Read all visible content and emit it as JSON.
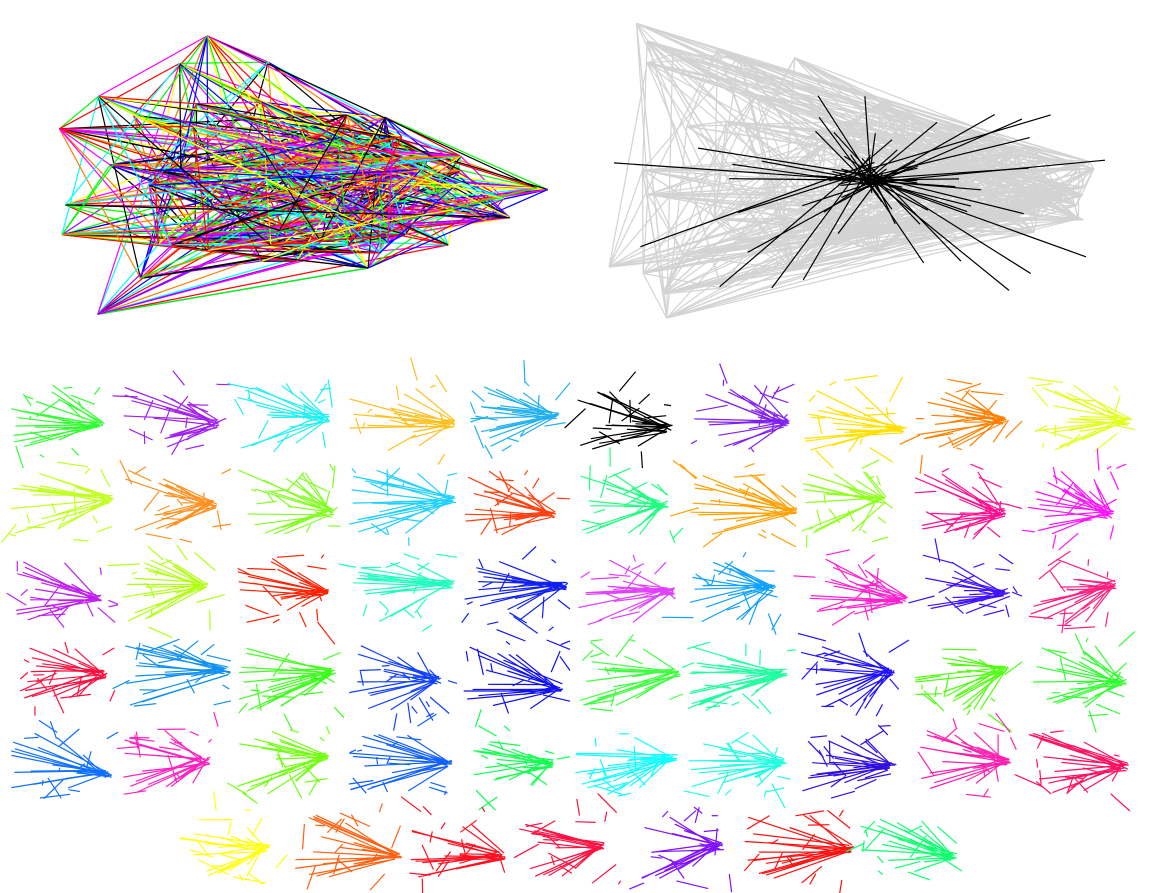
{
  "overview": {
    "palette": [
      "#ff0000",
      "#ff8000",
      "#ffff00",
      "#00ff00",
      "#00ffff",
      "#0000ff",
      "#a000ff",
      "#ff00ff",
      "#000000"
    ],
    "background_edge_color": "#d3d3d3",
    "highlight_color": "#000000"
  },
  "panels": {
    "colors": [
      "#33ff33",
      "#a020f0",
      "#20f0f0",
      "#ffc020",
      "#20b0f0",
      "#000000",
      "#8020f0",
      "#ffe000",
      "#ff8000",
      "#e0ff20",
      "#c0ff20",
      "#ff9020",
      "#80ff20",
      "#20d0ff",
      "#ff4010",
      "#20ff80",
      "#ffa000",
      "#90ff20",
      "#ff1090",
      "#ff10ff",
      "#c020f0",
      "#b0ff10",
      "#ff2000",
      "#20ffc0",
      "#1020f0",
      "#e040ff",
      "#10a0ff",
      "#ff20d0",
      "#4010ff",
      "#ff2080",
      "#ff1040",
      "#1090f0",
      "#40ff20",
      "#1040ff",
      "#1010f0",
      "#40ff40",
      "#20ffa0",
      "#2010ff",
      "#50ff10",
      "#30ff30",
      "#1070ff",
      "#ff20c0",
      "#70ff10",
      "#1060ff",
      "#10ff50",
      "#10ffff",
      "#20ffe0",
      "#3010e0",
      "#ff20b0",
      "#ff1060",
      "#ffff10",
      "#ff6010",
      "#ff1020",
      "#ff1040",
      "#8010ff",
      "#ff1010",
      "#10ff70"
    ]
  }
}
